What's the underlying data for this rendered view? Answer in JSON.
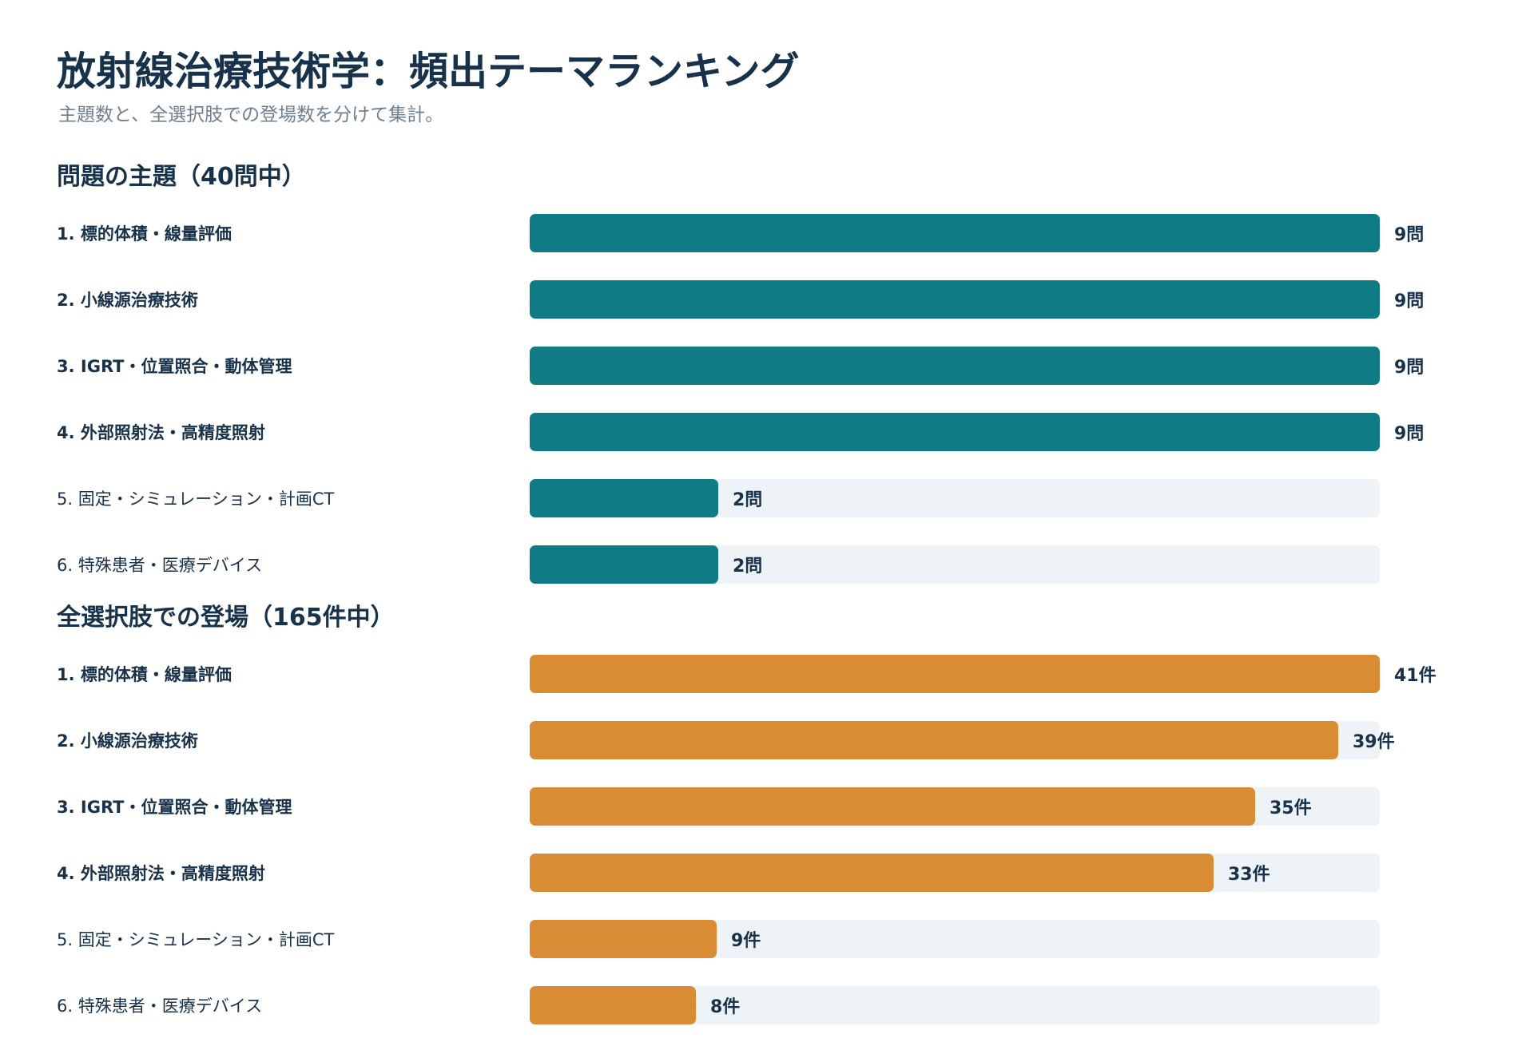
{
  "header": {
    "title": "放射線治療技術学：頻出テーマランキング",
    "subtitle": "主題数と、全選択肢での登場数を分けて集計。"
  },
  "colors": {
    "teal": "#0f7b84",
    "orange": "#d98c33",
    "track": "#eef3f7",
    "text": "#17324a"
  },
  "chart_data": [
    {
      "type": "bar",
      "orientation": "horizontal",
      "title": "問題の主題（40問中）",
      "categories": [
        "1. 標的体積・線量評価",
        "2. 小線源治療技術",
        "3. IGRT・位置照合・動体管理",
        "4. 外部照射法・高精度照射",
        "5. 固定・シミュレーション・計画CT",
        "6. 特殊患者・医療デバイス"
      ],
      "values": [
        9,
        9,
        9,
        9,
        2,
        2
      ],
      "value_labels": [
        "9問",
        "9問",
        "9問",
        "9問",
        "2問",
        "2問"
      ],
      "xlim": [
        0,
        9
      ],
      "color": "#0f7b84"
    },
    {
      "type": "bar",
      "orientation": "horizontal",
      "title": "全選択肢での登場（165件中）",
      "categories": [
        "1. 標的体積・線量評価",
        "2. 小線源治療技術",
        "3. IGRT・位置照合・動体管理",
        "4. 外部照射法・高精度照射",
        "5. 固定・シミュレーション・計画CT",
        "6. 特殊患者・医療デバイス"
      ],
      "values": [
        41,
        39,
        35,
        33,
        9,
        8
      ],
      "value_labels": [
        "41件",
        "39件",
        "35件",
        "33件",
        "9件",
        "8件"
      ],
      "xlim": [
        0,
        41
      ],
      "color": "#d98c33"
    }
  ]
}
